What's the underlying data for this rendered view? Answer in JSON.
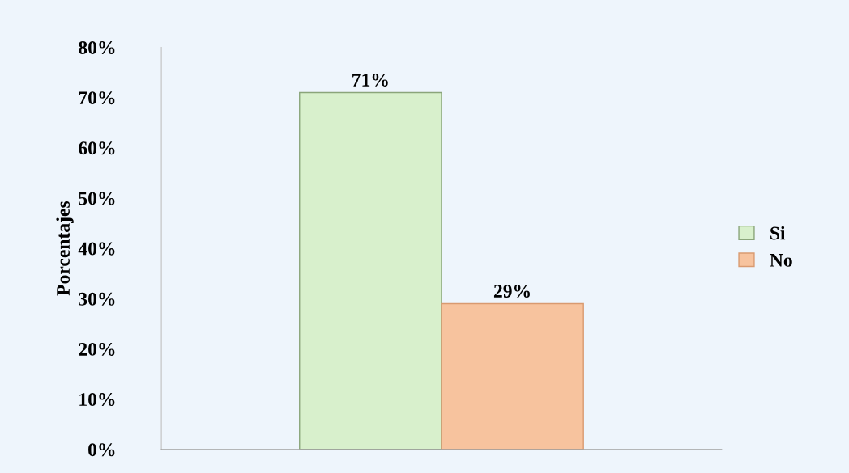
{
  "chart_data": {
    "type": "bar",
    "ylabel": "Porcentajes",
    "categories": [
      null
    ],
    "series": [
      {
        "name": "Si",
        "color": "#d8f0cc",
        "values": [
          71
        ],
        "value_labels": [
          "71%"
        ]
      },
      {
        "name": "No",
        "color": "#f7c39e",
        "values": [
          29
        ],
        "value_labels": [
          "29%"
        ]
      }
    ],
    "ylim": [
      0,
      80
    ],
    "yticks": [
      {
        "value": 0,
        "label": "0%"
      },
      {
        "value": 10,
        "label": "10%"
      },
      {
        "value": 20,
        "label": "20%"
      },
      {
        "value": 30,
        "label": "30%"
      },
      {
        "value": 40,
        "label": "40%"
      },
      {
        "value": 50,
        "label": "50%"
      },
      {
        "value": 60,
        "label": "60%"
      },
      {
        "value": 70,
        "label": "70%"
      },
      {
        "value": 80,
        "label": "80%"
      }
    ],
    "legend": "right",
    "grid": false
  }
}
